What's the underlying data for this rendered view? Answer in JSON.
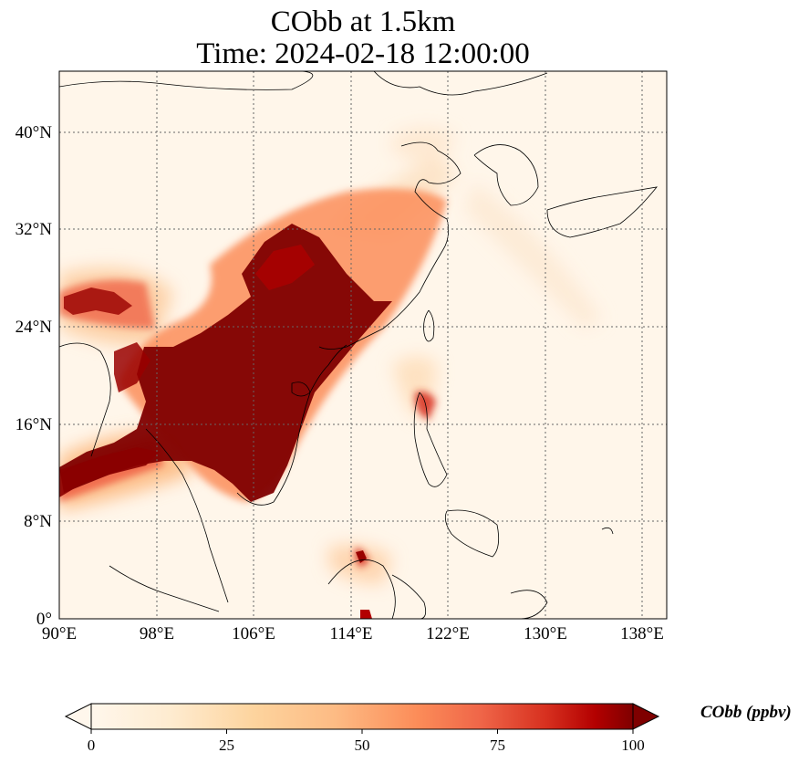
{
  "title": {
    "line1": "CObb at 1.5km",
    "line2": "Time: 2024-02-18 12:00:00"
  },
  "map": {
    "projection": "PlateCarree",
    "lon_range": [
      90,
      140
    ],
    "lat_range": [
      0,
      45
    ],
    "gridlines": "dotted",
    "lon_ticks": [
      {
        "value": 90,
        "label": "90°E"
      },
      {
        "value": 98,
        "label": "98°E"
      },
      {
        "value": 106,
        "label": "106°E"
      },
      {
        "value": 114,
        "label": "114°E"
      },
      {
        "value": 122,
        "label": "122°E"
      },
      {
        "value": 130,
        "label": "130°E"
      },
      {
        "value": 138,
        "label": "138°E"
      }
    ],
    "lat_ticks": [
      {
        "value": 0,
        "label": "0°"
      },
      {
        "value": 8,
        "label": "8°N"
      },
      {
        "value": 16,
        "label": "16°N"
      },
      {
        "value": 24,
        "label": "24°N"
      },
      {
        "value": 32,
        "label": "32°N"
      },
      {
        "value": 40,
        "label": "40°N"
      }
    ],
    "colormap": "OrRd",
    "colors": {
      "low": "#fff7ec",
      "mid_low": "#fdd49e",
      "mid": "#fc8d59",
      "high": "#d7301f",
      "max": "#7f0000",
      "coastline": "#000000",
      "grid": "#666666"
    }
  },
  "colorbar": {
    "label": "CObb (ppbv)",
    "min": 0,
    "max": 100,
    "extend": "both",
    "ticks": [
      {
        "value": 0,
        "label": "0"
      },
      {
        "value": 25,
        "label": "25"
      },
      {
        "value": 50,
        "label": "50"
      },
      {
        "value": 75,
        "label": "75"
      },
      {
        "value": 100,
        "label": "100"
      }
    ]
  }
}
